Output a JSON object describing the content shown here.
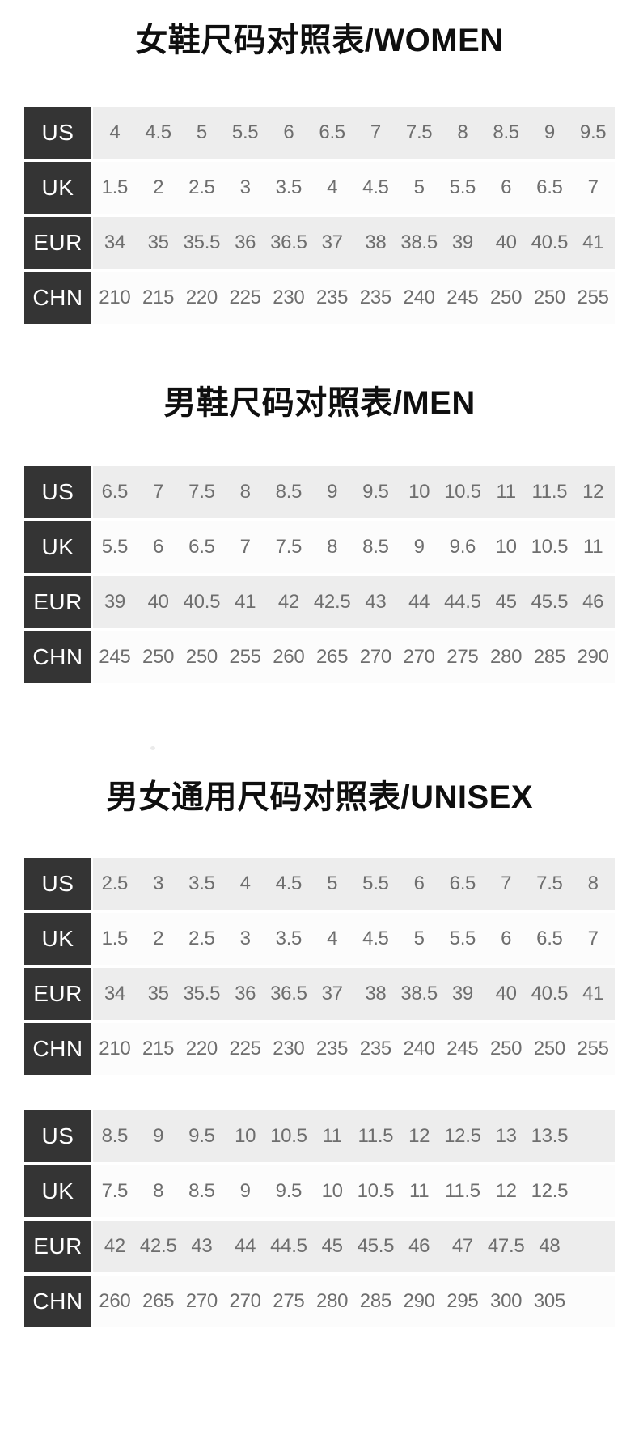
{
  "page_bg": "#ffffff",
  "colors": {
    "header_bg": "#343434",
    "header_text": "#ffffff",
    "row_gray_bg": "#ededed",
    "row_light_bg": "#fcfcfc",
    "value_text": "#6e6e6e",
    "title_text": "#0f0f0f"
  },
  "sections": [
    {
      "title": "女鞋尺码对照表/WOMEN",
      "tables": [
        {
          "grid_columns": 12,
          "rows": [
            {
              "label": "US",
              "values": [
                "4",
                "4.5",
                "5",
                "5.5",
                "6",
                "6.5",
                "7",
                "7.5",
                "8",
                "8.5",
                "9",
                "9.5"
              ]
            },
            {
              "label": "UK",
              "values": [
                "1.5",
                "2",
                "2.5",
                "3",
                "3.5",
                "4",
                "4.5",
                "5",
                "5.5",
                "6",
                "6.5",
                "7"
              ]
            },
            {
              "label": "EUR",
              "values": [
                "34",
                "35",
                "35.5",
                "36",
                "36.5",
                "37",
                "38",
                "38.5",
                "39",
                "40",
                "40.5",
                "41"
              ]
            },
            {
              "label": "CHN",
              "values": [
                "210",
                "215",
                "220",
                "225",
                "230",
                "235",
                "235",
                "240",
                "245",
                "250",
                "250",
                "255"
              ]
            }
          ]
        }
      ]
    },
    {
      "title": "男鞋尺码对照表/MEN",
      "tables": [
        {
          "grid_columns": 12,
          "rows": [
            {
              "label": "US",
              "values": [
                "6.5",
                "7",
                "7.5",
                "8",
                "8.5",
                "9",
                "9.5",
                "10",
                "10.5",
                "11",
                "11.5",
                "12"
              ]
            },
            {
              "label": "UK",
              "values": [
                "5.5",
                "6",
                "6.5",
                "7",
                "7.5",
                "8",
                "8.5",
                "9",
                "9.6",
                "10",
                "10.5",
                "11"
              ]
            },
            {
              "label": "EUR",
              "values": [
                "39",
                "40",
                "40.5",
                "41",
                "42",
                "42.5",
                "43",
                "44",
                "44.5",
                "45",
                "45.5",
                "46"
              ]
            },
            {
              "label": "CHN",
              "values": [
                "245",
                "250",
                "250",
                "255",
                "260",
                "265",
                "270",
                "270",
                "275",
                "280",
                "285",
                "290"
              ]
            }
          ]
        }
      ]
    },
    {
      "title": "男女通用尺码对照表/UNISEX",
      "tables": [
        {
          "grid_columns": 12,
          "rows": [
            {
              "label": "US",
              "values": [
                "2.5",
                "3",
                "3.5",
                "4",
                "4.5",
                "5",
                "5.5",
                "6",
                "6.5",
                "7",
                "7.5",
                "8"
              ]
            },
            {
              "label": "UK",
              "values": [
                "1.5",
                "2",
                "2.5",
                "3",
                "3.5",
                "4",
                "4.5",
                "5",
                "5.5",
                "6",
                "6.5",
                "7"
              ]
            },
            {
              "label": "EUR",
              "values": [
                "34",
                "35",
                "35.5",
                "36",
                "36.5",
                "37",
                "38",
                "38.5",
                "39",
                "40",
                "40.5",
                "41"
              ]
            },
            {
              "label": "CHN",
              "values": [
                "210",
                "215",
                "220",
                "225",
                "230",
                "235",
                "235",
                "240",
                "245",
                "250",
                "250",
                "255"
              ]
            }
          ]
        },
        {
          "grid_columns": 12,
          "rows": [
            {
              "label": "US",
              "values": [
                "8.5",
                "9",
                "9.5",
                "10",
                "10.5",
                "11",
                "11.5",
                "12",
                "12.5",
                "13",
                "13.5"
              ]
            },
            {
              "label": "UK",
              "values": [
                "7.5",
                "8",
                "8.5",
                "9",
                "9.5",
                "10",
                "10.5",
                "11",
                "11.5",
                "12",
                "12.5"
              ]
            },
            {
              "label": "EUR",
              "values": [
                "42",
                "42.5",
                "43",
                "44",
                "44.5",
                "45",
                "45.5",
                "46",
                "47",
                "47.5",
                "48"
              ]
            },
            {
              "label": "CHN",
              "values": [
                "260",
                "265",
                "270",
                "270",
                "275",
                "280",
                "285",
                "290",
                "295",
                "300",
                "305"
              ]
            }
          ]
        }
      ]
    }
  ]
}
